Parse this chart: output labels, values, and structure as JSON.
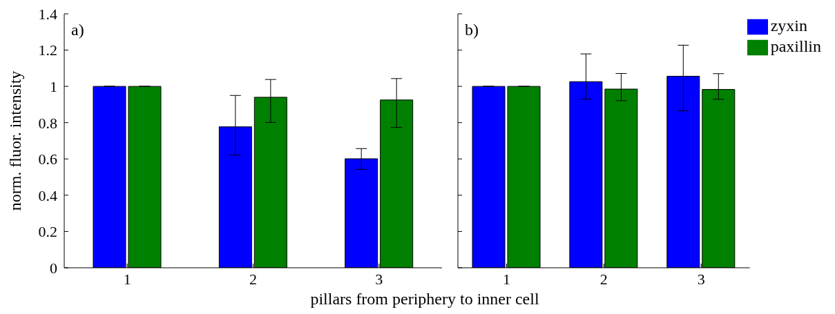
{
  "chart_data": [
    {
      "type": "bar",
      "ylabel": "norm. fluor. intensity",
      "xlabel": "pillars from periphery to inner cell",
      "annotations": [
        "a)"
      ],
      "categories": [
        "1",
        "2",
        "3"
      ],
      "ylim": [
        0,
        1.4
      ],
      "yticks": [
        0,
        0.2,
        0.4,
        0.6,
        0.8,
        1,
        1.2,
        1.4
      ],
      "grid": false,
      "legend": false,
      "series": [
        {
          "color": "#0000ff",
          "values": [
            1.0,
            0.777,
            0.601
          ],
          "errors": [
            null,
            [
              0.621,
              0.95
            ],
            [
              0.542,
              0.657
            ]
          ]
        },
        {
          "color": "#008000",
          "values": [
            1.0,
            0.94,
            0.925
          ],
          "errors": [
            null,
            [
              0.801,
              1.038
            ],
            [
              0.774,
              1.043
            ]
          ]
        }
      ]
    },
    {
      "type": "bar",
      "annotations": [
        "b)"
      ],
      "categories": [
        "1",
        "2",
        "3"
      ],
      "ylim": [
        0,
        1.4
      ],
      "yticks": [
        0,
        0.2,
        0.4,
        0.6,
        0.8,
        1,
        1.2,
        1.4
      ],
      "tick_labels": "x",
      "grid": false,
      "legend": "top right",
      "series": [
        {
          "name": "zyxin",
          "color": "#0000ff",
          "values": [
            1.0,
            1.026,
            1.056
          ],
          "errors": [
            null,
            [
              0.93,
              1.179
            ],
            [
              0.865,
              1.227
            ]
          ]
        },
        {
          "name": "paxillin",
          "color": "#008000",
          "values": [
            1.0,
            0.985,
            0.983
          ],
          "errors": [
            null,
            [
              0.921,
              1.071
            ],
            [
              0.929,
              1.07
            ]
          ]
        }
      ]
    }
  ]
}
